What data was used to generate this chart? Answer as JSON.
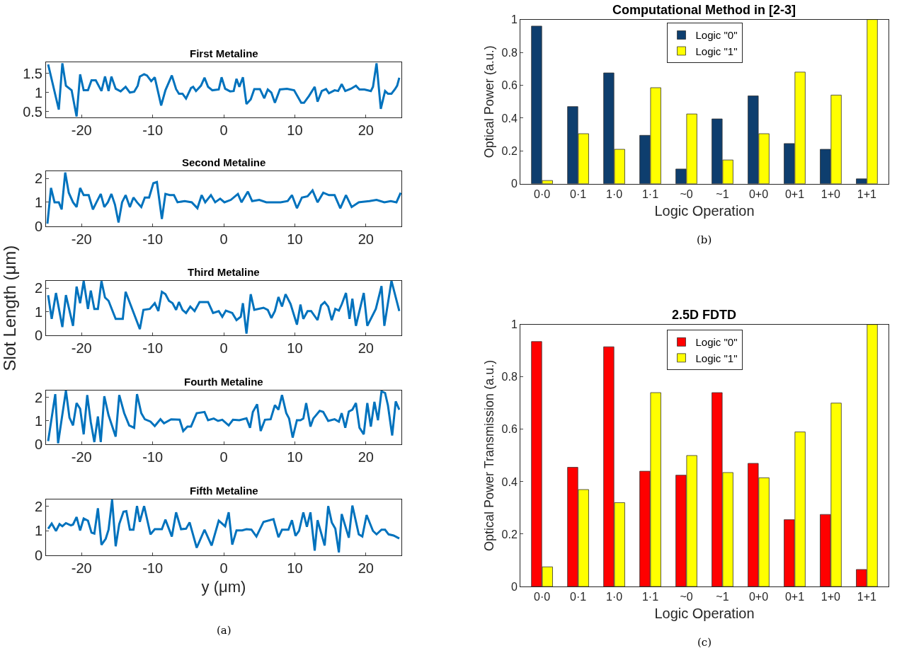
{
  "chart_data": [
    {
      "type": "line",
      "title": "First Metaline",
      "xlim": [
        -25,
        25
      ],
      "ylim": [
        0.35,
        1.79
      ],
      "xticks": [
        -20,
        -10,
        0,
        10,
        20
      ],
      "yticks": [
        0.5,
        1,
        1.5
      ],
      "x": [
        -24.7,
        -23.2,
        -22.7,
        -22.2,
        -21.4,
        -20.7,
        -20.2,
        -19.7,
        -19.1,
        -18.6,
        -18.0,
        -17.2,
        -16.7,
        -16.2,
        -15.8,
        -15.2,
        -14.5,
        -13.8,
        -13.2,
        -12.6,
        -12.1,
        -11.8,
        -11.2,
        -10.8,
        -10.2,
        -9.7,
        -8.8,
        -8.2,
        -7.3,
        -6.7,
        -6.3,
        -5.8,
        -5.3,
        -4.6,
        -4.3,
        -3.9,
        -3.2,
        -2.7,
        -2.2,
        -1.6,
        -0.7,
        -0.3,
        0.2,
        0.9,
        1.4,
        1.8,
        2.2,
        2.7,
        3.2,
        3.8,
        4.3,
        5.1,
        5.7,
        6.2,
        6.7,
        7.2,
        7.9,
        8.9,
        9.9,
        10.9,
        11.3,
        12.0,
        12.8,
        13.2,
        13.8,
        14.4,
        14.8,
        15.6,
        16.1,
        16.6,
        17.1,
        17.9,
        18.6,
        19.1,
        19.8,
        20.7,
        21.0,
        21.5,
        22.1,
        22.7,
        23.1,
        23.6,
        24.1,
        24.4,
        24.7
      ],
      "series": [
        {
          "color": "#0072bd",
          "values": [
            1.74,
            0.55,
            1.77,
            1.18,
            1.06,
            0.37,
            1.48,
            1.06,
            1.06,
            1.32,
            1.32,
            1.04,
            1.42,
            1.04,
            1.42,
            1.1,
            1.03,
            1.15,
            1.0,
            1.02,
            1.18,
            1.42,
            1.48,
            1.45,
            1.3,
            1.4,
            0.66,
            1.06,
            1.45,
            1.09,
            0.97,
            0.97,
            0.84,
            1.12,
            1.15,
            1.04,
            1.18,
            1.39,
            1.15,
            1.06,
            1.08,
            1.4,
            1.1,
            1.03,
            1.04,
            1.36,
            1.15,
            1.4,
            0.7,
            0.82,
            1.09,
            1.09,
            0.85,
            1.08,
            1.0,
            0.73,
            1.08,
            1.1,
            1.06,
            0.73,
            0.73,
            0.91,
            1.15,
            0.76,
            1.04,
            1.09,
            0.98,
            1.06,
            1.04,
            1.22,
            1.04,
            1.1,
            1.18,
            1.08,
            1.08,
            1.04,
            1.15,
            1.77,
            0.57,
            1.04,
            0.97,
            0.97,
            1.09,
            1.18,
            1.39
          ]
        }
      ]
    },
    {
      "type": "line",
      "title": "Second Metaline",
      "xlim": [
        -25,
        25
      ],
      "ylim": [
        0,
        2.3
      ],
      "xticks": [
        -20,
        -10,
        0,
        10,
        20
      ],
      "yticks": [
        0,
        1,
        2
      ],
      "x": [
        -24.8,
        -24.3,
        -23.8,
        -23.2,
        -22.8,
        -22.3,
        -21.8,
        -21.2,
        -20.7,
        -20.2,
        -19.7,
        -19.0,
        -18.4,
        -17.9,
        -17.3,
        -16.8,
        -16.3,
        -15.8,
        -15.3,
        -14.8,
        -14.3,
        -13.8,
        -13.2,
        -12.7,
        -12.2,
        -11.6,
        -11.1,
        -10.5,
        -9.9,
        -9.4,
        -8.7,
        -8.2,
        -7.6,
        -7.0,
        -6.5,
        -5.5,
        -4.5,
        -3.7,
        -3.1,
        -2.6,
        -1.8,
        -1.2,
        -0.5,
        0.1,
        1.0,
        2.0,
        2.5,
        3.4,
        4.0,
        5.0,
        6.0,
        8.0,
        9.0,
        9.6,
        10.3,
        11.0,
        11.8,
        12.5,
        13.2,
        14.0,
        14.8,
        15.6,
        16.4,
        17.2,
        18.0,
        19.0,
        20.5,
        21.5,
        22.6,
        23.5,
        24.3,
        24.9
      ],
      "series": [
        {
          "color": "#0072bd",
          "values": [
            0.1,
            1.6,
            1.0,
            1.0,
            0.7,
            2.25,
            1.4,
            1.0,
            0.8,
            1.6,
            1.3,
            1.3,
            0.7,
            1.0,
            1.35,
            0.8,
            1.0,
            1.35,
            0.9,
            0.15,
            1.0,
            1.3,
            0.8,
            1.2,
            1.0,
            0.8,
            1.2,
            1.2,
            1.8,
            1.85,
            0.3,
            1.35,
            1.3,
            1.3,
            1.0,
            1.05,
            1.0,
            0.75,
            1.3,
            1.0,
            1.3,
            1.0,
            1.15,
            1.0,
            1.1,
            1.35,
            1.0,
            1.45,
            1.05,
            1.1,
            1.0,
            1.0,
            1.05,
            1.3,
            0.75,
            1.2,
            1.25,
            1.5,
            1.0,
            1.4,
            1.3,
            1.3,
            0.75,
            1.3,
            0.8,
            1.0,
            1.05,
            1.1,
            1.0,
            1.05,
            1.0,
            1.4
          ]
        }
      ]
    },
    {
      "type": "line",
      "title": "Third Metaline",
      "ylabel": "Slot Length (μm)",
      "xlim": [
        -25,
        25
      ],
      "ylim": [
        0,
        2.3
      ],
      "xticks": [
        -20,
        -10,
        0,
        10,
        20
      ],
      "yticks": [
        0,
        1,
        2
      ],
      "x": [
        -24.7,
        -24.2,
        -23.6,
        -22.7,
        -22.2,
        -21.2,
        -20.7,
        -20.2,
        -19.7,
        -19.1,
        -18.7,
        -18.2,
        -17.7,
        -17.2,
        -16.7,
        -16.2,
        -15.2,
        -14.2,
        -13.8,
        -11.8,
        -11.3,
        -10.4,
        -9.7,
        -9.2,
        -8.7,
        -8.2,
        -7.7,
        -7.2,
        -6.7,
        -6.3,
        -5.8,
        -5.3,
        -4.7,
        -4.1,
        -3.4,
        -2.2,
        -1.5,
        -0.7,
        -0.2,
        0.3,
        1.2,
        1.8,
        2.4,
        2.7,
        3.2,
        3.8,
        4.3,
        5.6,
        6.2,
        6.7,
        7.2,
        7.7,
        8.2,
        8.7,
        9.4,
        10.3,
        10.8,
        11.2,
        11.8,
        12.3,
        13.2,
        13.7,
        14.2,
        14.7,
        15.2,
        15.7,
        16.2,
        16.6,
        17.2,
        17.7,
        18.1,
        18.6,
        19.7,
        20.2,
        21.4,
        22.2,
        22.6,
        23.6,
        24.7
      ],
      "series": [
        {
          "color": "#0072bd",
          "values": [
            1.7,
            0.7,
            1.79,
            0.36,
            1.7,
            0.41,
            2.06,
            1.36,
            2.29,
            1.12,
            1.89,
            1.12,
            1.12,
            2.29,
            1.6,
            1.46,
            0.7,
            0.7,
            1.84,
            0.27,
            1.08,
            1.12,
            1.36,
            1.03,
            1.84,
            1.74,
            1.46,
            1.36,
            1.08,
            1.41,
            1.08,
            0.95,
            1.22,
            1.03,
            1.41,
            1.41,
            0.95,
            1.03,
            0.79,
            1.05,
            0.95,
            0.65,
            0.79,
            1.36,
            0.08,
            1.74,
            1.08,
            1.17,
            1.08,
            0.74,
            1.03,
            1.62,
            1.22,
            1.74,
            1.33,
            0.46,
            1.3,
            0.7,
            1.03,
            1.03,
            0.65,
            1.27,
            1.41,
            1.22,
            0.65,
            1.12,
            1.05,
            1.31,
            1.79,
            0.7,
            1.55,
            0.41,
            1.79,
            0.41,
            1.12,
            2.08,
            0.41,
            2.3,
            1.03
          ]
        }
      ]
    },
    {
      "type": "line",
      "title": "Fourth Metaline",
      "xlim": [
        -25,
        25
      ],
      "ylim": [
        0,
        2.3
      ],
      "xticks": [
        -20,
        -10,
        0,
        10,
        20
      ],
      "yticks": [
        0,
        1,
        2
      ],
      "x": [
        -24.7,
        -23.7,
        -23.3,
        -22.2,
        -21.7,
        -21.2,
        -20.7,
        -20.2,
        -19.7,
        -19.2,
        -18.7,
        -18.2,
        -17.7,
        -17.3,
        -16.8,
        -16.2,
        -15.2,
        -14.7,
        -14.0,
        -13.3,
        -12.6,
        -12.2,
        -11.6,
        -11.1,
        -10.3,
        -9.7,
        -8.9,
        -8.4,
        -7.4,
        -6.2,
        -5.7,
        -5.1,
        -4.6,
        -3.8,
        -2.7,
        -2.2,
        -1.4,
        -0.8,
        -0.2,
        0.7,
        1.3,
        2.2,
        3.2,
        3.7,
        4.1,
        4.7,
        5.2,
        5.8,
        6.6,
        7.2,
        7.7,
        8.2,
        8.8,
        9.2,
        9.7,
        10.3,
        10.8,
        11.2,
        11.6,
        12.2,
        12.6,
        13.5,
        14.0,
        14.7,
        15.6,
        16.2,
        16.6,
        17.1,
        17.6,
        18.1,
        18.6,
        19.1,
        19.7,
        20.2,
        20.7,
        21.2,
        21.7,
        22.2,
        22.7,
        23.1,
        23.7,
        24.2,
        24.7
      ],
      "series": [
        {
          "color": "#0072bd",
          "values": [
            0.14,
            2.14,
            0.05,
            2.29,
            1.14,
            0.81,
            1.76,
            1.52,
            0.43,
            2.1,
            0.95,
            0.1,
            1.19,
            0.1,
            2.05,
            1.24,
            0.33,
            2.1,
            1.33,
            0.81,
            0.71,
            2.14,
            1.33,
            1.07,
            0.97,
            0.78,
            1.07,
            0.9,
            1.07,
            1.05,
            0.57,
            0.76,
            0.76,
            1.33,
            1.38,
            1.03,
            1.1,
            1.0,
            1.05,
            0.81,
            1.05,
            1.03,
            1.11,
            0.71,
            1.38,
            1.71,
            0.57,
            1.05,
            1.07,
            1.67,
            1.48,
            2.1,
            1.33,
            1.1,
            0.29,
            1.03,
            1.03,
            1.1,
            1.76,
            0.76,
            1.1,
            1.43,
            1.38,
            1.0,
            1.07,
            0.97,
            1.33,
            0.71,
            1.4,
            1.48,
            1.76,
            0.71,
            0.43,
            1.76,
            0.76,
            1.81,
            1.03,
            2.26,
            2.19,
            1.67,
            0.38,
            1.83,
            1.48
          ]
        }
      ]
    },
    {
      "type": "line",
      "title": "Fifth Metaline",
      "xlabel": "y (μm)",
      "annotations": [
        "(a)"
      ],
      "xlim": [
        -25,
        25
      ],
      "ylim": [
        0,
        2.3
      ],
      "xticks": [
        -20,
        -10,
        0,
        10,
        20
      ],
      "yticks": [
        0,
        1,
        2
      ],
      "x": [
        -24.7,
        -24.2,
        -23.6,
        -23.1,
        -22.7,
        -22.2,
        -21.5,
        -21.2,
        -20.7,
        -20.2,
        -19.7,
        -19.1,
        -18.6,
        -18.2,
        -17.7,
        -17.2,
        -16.6,
        -16.2,
        -15.7,
        -15.2,
        -14.7,
        -14.1,
        -13.7,
        -13.2,
        -12.7,
        -12.2,
        -11.8,
        -11.2,
        -10.3,
        -9.7,
        -8.7,
        -8.2,
        -7.3,
        -6.7,
        -6.0,
        -5.3,
        -4.8,
        -3.8,
        -2.7,
        -1.7,
        -0.7,
        0.2,
        0.7,
        1.2,
        1.8,
        2.6,
        3.2,
        3.9,
        4.6,
        5.6,
        7.0,
        7.7,
        8.2,
        9.1,
        9.6,
        10.1,
        10.6,
        11.2,
        11.7,
        12.2,
        12.8,
        13.2,
        14.2,
        14.7,
        15.2,
        15.7,
        16.2,
        16.6,
        17.6,
        18.1,
        19.0,
        19.5,
        20.1,
        21.0,
        21.5,
        22.2,
        22.7,
        23.2,
        23.9,
        24.7
      ],
      "series": [
        {
          "color": "#0072bd",
          "values": [
            1.09,
            1.3,
            1.0,
            1.28,
            1.19,
            1.32,
            1.23,
            1.26,
            1.57,
            1.02,
            1.51,
            1.42,
            0.93,
            0.89,
            1.93,
            0.43,
            0.68,
            1.05,
            2.28,
            0.37,
            1.28,
            1.79,
            1.81,
            1.05,
            1.05,
            2.02,
            1.37,
            2.02,
            0.86,
            1.07,
            1.07,
            1.46,
            0.77,
            1.76,
            1.07,
            1.09,
            1.35,
            0.31,
            1.05,
            0.4,
            1.42,
            1.19,
            1.76,
            0.44,
            1.02,
            1.02,
            1.07,
            1.05,
            0.77,
            1.37,
            1.48,
            0.74,
            1.05,
            1.05,
            1.44,
            0.8,
            1.0,
            1.76,
            1.17,
            1.76,
            0.19,
            1.44,
            0.4,
            2.02,
            1.35,
            1.09,
            0.12,
            1.69,
            0.72,
            2.04,
            0.86,
            0.77,
            1.65,
            1.0,
            0.86,
            1.05,
            1.05,
            0.86,
            0.81,
            0.69
          ]
        }
      ]
    },
    {
      "type": "bar",
      "title": "Computational Method in [2-3]",
      "xlabel": "Logic Operation",
      "ylabel": "Optical Power (a.u.)",
      "annotations": [
        "(b)"
      ],
      "legend": "top",
      "categories": [
        "0·0",
        "0·1",
        "1·0",
        "1·1",
        "~0",
        "~1",
        "0+0",
        "0+1",
        "1+0",
        "1+1"
      ],
      "ylim": [
        0,
        1
      ],
      "yticks": [
        0,
        0.2,
        0.4,
        0.6,
        0.8,
        1
      ],
      "series": [
        {
          "name": "Logic \"0\"",
          "color": "#0e3e6e",
          "values": [
            0.96,
            0.47,
            0.675,
            0.295,
            0.09,
            0.395,
            0.535,
            0.245,
            0.21,
            0.03
          ]
        },
        {
          "name": "Logic \"1\"",
          "color": "#ffff00",
          "values": [
            0.02,
            0.305,
            0.21,
            0.585,
            0.425,
            0.145,
            0.305,
            0.68,
            0.54,
            1.0
          ]
        }
      ]
    },
    {
      "type": "bar",
      "title": "2.5D FDTD",
      "xlabel": "Logic Operation",
      "ylabel": "Optical Power Transmission (a.u.)",
      "annotations": [
        "(c)"
      ],
      "legend": "top",
      "categories": [
        "0·0",
        "0·1",
        "1·0",
        "1·1",
        "~0",
        "~1",
        "0+0",
        "0+1",
        "1+0",
        "1+1"
      ],
      "ylim": [
        0,
        1
      ],
      "yticks": [
        0,
        0.2,
        0.4,
        0.6,
        0.8,
        1
      ],
      "series": [
        {
          "name": "Logic \"0\"",
          "color": "#ff0000",
          "values": [
            0.935,
            0.455,
            0.915,
            0.44,
            0.425,
            0.74,
            0.47,
            0.255,
            0.275,
            0.065
          ]
        },
        {
          "name": "Logic \"1\"",
          "color": "#ffff00",
          "values": [
            0.075,
            0.37,
            0.32,
            0.74,
            0.5,
            0.435,
            0.415,
            0.59,
            0.7,
            1.0
          ]
        }
      ]
    }
  ]
}
